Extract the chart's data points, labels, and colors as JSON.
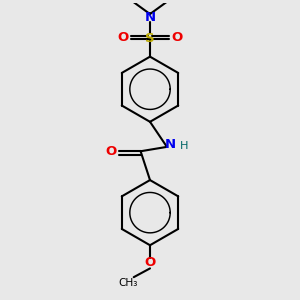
{
  "background_color": "#e8e8e8",
  "fig_size": [
    3.0,
    3.0
  ],
  "dpi": 100,
  "bond_color": "#000000",
  "bond_width": 1.5,
  "N_color": "#0000ee",
  "O_color": "#ee0000",
  "S_color": "#bbaa00",
  "H_color": "#006666",
  "font_size": 9.5,
  "xlim": [
    -1.2,
    1.2
  ],
  "ylim": [
    -2.6,
    2.1
  ]
}
